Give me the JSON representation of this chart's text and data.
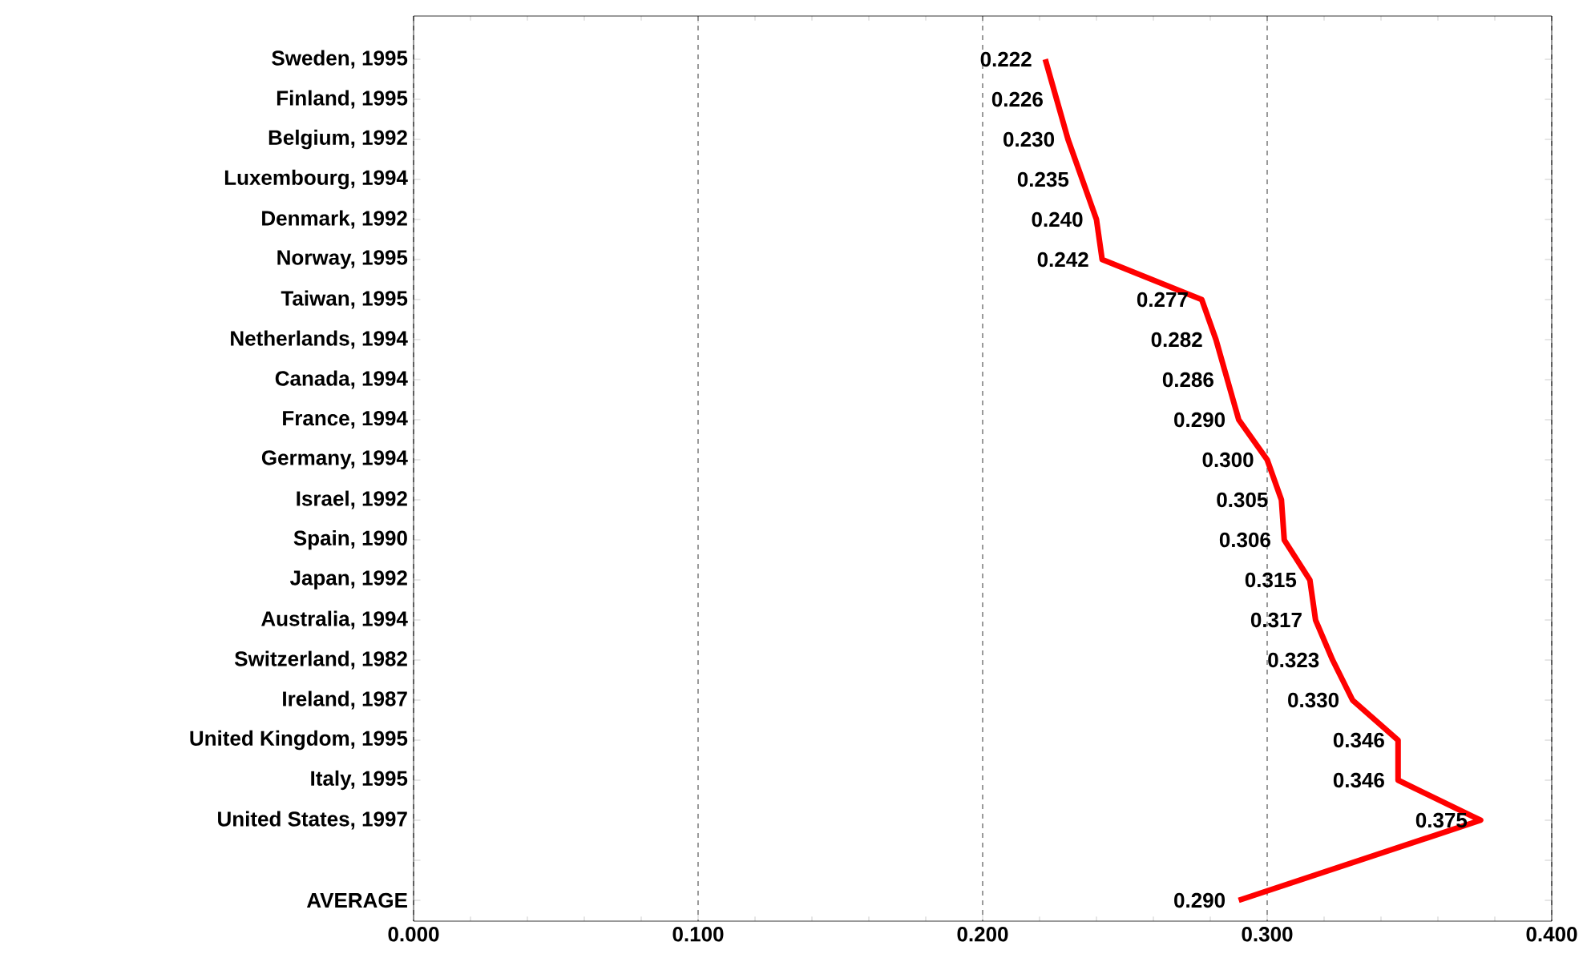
{
  "chart_data": {
    "type": "line",
    "orientation": "horizontal",
    "categories": [
      "Sweden, 1995",
      "Finland, 1995",
      "Belgium, 1992",
      "Luxembourg, 1994",
      "Denmark, 1992",
      "Norway, 1995",
      "Taiwan, 1995",
      "Netherlands, 1994",
      "Canada, 1994",
      "France, 1994",
      "Germany, 1994",
      "Israel, 1992",
      "Spain, 1990",
      "Japan, 1992",
      "Australia, 1994",
      "Switzerland, 1982",
      "Ireland, 1987",
      "United Kingdom, 1995",
      "Italy, 1995",
      "United States, 1997",
      null,
      "AVERAGE"
    ],
    "values": [
      0.222,
      0.226,
      0.23,
      0.235,
      0.24,
      0.242,
      0.277,
      0.282,
      0.286,
      0.29,
      0.3,
      0.305,
      0.306,
      0.315,
      0.317,
      0.323,
      0.33,
      0.346,
      0.346,
      0.375,
      null,
      0.29
    ],
    "value_labels": [
      "0.222",
      "0.226",
      "0.230",
      "0.235",
      "0.240",
      "0.242",
      "0.277",
      "0.282",
      "0.286",
      "0.290",
      "0.300",
      "0.305",
      "0.306",
      "0.315",
      "0.317",
      "0.323",
      "0.330",
      "0.346",
      "0.346",
      "0.375",
      null,
      "0.290"
    ],
    "color": "#ff0000",
    "grid": "x",
    "line_style": "solid",
    "xlim": [
      0,
      0.4
    ],
    "xticks": [
      {
        "value": 0,
        "label": "0.000"
      },
      {
        "value": 0.1,
        "label": "0.100"
      },
      {
        "value": 0.2,
        "label": "0.200"
      },
      {
        "value": 0.3,
        "label": "0.300"
      },
      {
        "value": 0.4,
        "label": "0.400"
      }
    ]
  }
}
